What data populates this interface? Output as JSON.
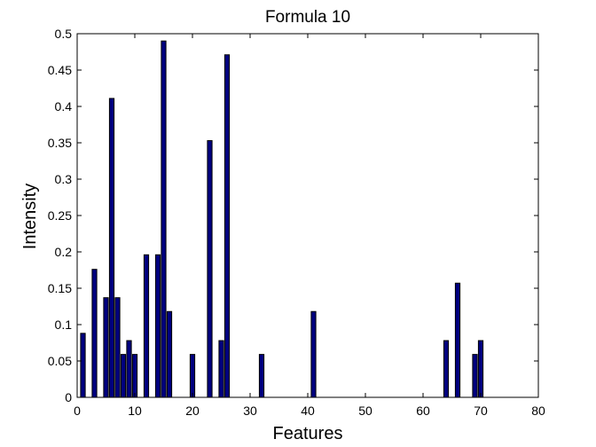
{
  "chart_data": {
    "type": "bar",
    "title": "Formula 10",
    "xlabel": "Features",
    "ylabel": "Intensity",
    "xlim": [
      0,
      80
    ],
    "ylim": [
      0,
      0.5
    ],
    "xticks": [
      0,
      10,
      20,
      30,
      40,
      50,
      60,
      70,
      80
    ],
    "yticks": [
      0,
      0.05,
      0.1,
      0.15,
      0.2,
      0.25,
      0.3,
      0.35,
      0.4,
      0.45,
      0.5
    ],
    "ytick_labels": [
      "0",
      "0.05",
      "0.1",
      "0.15",
      "0.2",
      "0.25",
      "0.3",
      "0.35",
      "0.4",
      "0.45",
      "0.5"
    ],
    "grid": false,
    "bar_color": "#00007f",
    "bar_edge_color": "#000000",
    "x": [
      1,
      3,
      5,
      6,
      7,
      8,
      9,
      10,
      12,
      14,
      15,
      16,
      20,
      23,
      25,
      26,
      32,
      41,
      64,
      66,
      69,
      70
    ],
    "values": [
      0.088,
      0.176,
      0.137,
      0.411,
      0.137,
      0.059,
      0.078,
      0.059,
      0.196,
      0.196,
      0.49,
      0.118,
      0.059,
      0.353,
      0.078,
      0.471,
      0.059,
      0.118,
      0.078,
      0.157,
      0.059,
      0.078
    ]
  }
}
